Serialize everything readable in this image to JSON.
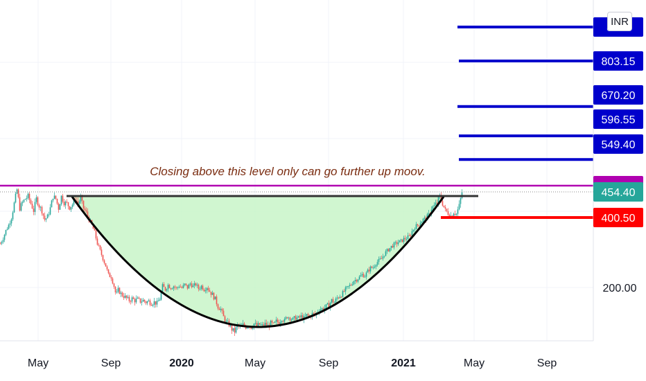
{
  "currency": "INR",
  "chart_data": {
    "type": "candlestick",
    "x_ticks": [
      "May",
      "Sep",
      "2020",
      "May",
      "Sep",
      "2021",
      "May",
      "Sep"
    ],
    "x_ticks_bold": [
      false,
      false,
      true,
      false,
      false,
      true,
      false,
      false
    ],
    "y_ticks": [
      {
        "value": 200,
        "label": "200.00"
      }
    ],
    "ylim": [
      100,
      900
    ],
    "grid": true,
    "price_series": [
      [
        0,
        330
      ],
      [
        4,
        345
      ],
      [
        8,
        365
      ],
      [
        12,
        380
      ],
      [
        16,
        400
      ],
      [
        20,
        430
      ],
      [
        24,
        460
      ],
      [
        28,
        420
      ],
      [
        32,
        432
      ],
      [
        36,
        440
      ],
      [
        40,
        445
      ],
      [
        44,
        430
      ],
      [
        48,
        415
      ],
      [
        52,
        440
      ],
      [
        56,
        425
      ],
      [
        60,
        415
      ],
      [
        64,
        395
      ],
      [
        68,
        402
      ],
      [
        72,
        420
      ],
      [
        76,
        445
      ],
      [
        80,
        440
      ],
      [
        84,
        420
      ],
      [
        88,
        445
      ],
      [
        92,
        432
      ],
      [
        96,
        430
      ],
      [
        100,
        422
      ],
      [
        104,
        428
      ],
      [
        108,
        440
      ],
      [
        112,
        430
      ],
      [
        116,
        440
      ],
      [
        120,
        420
      ],
      [
        124,
        410
      ],
      [
        128,
        395
      ],
      [
        132,
        380
      ],
      [
        136,
        360
      ],
      [
        140,
        330
      ],
      [
        144,
        310
      ],
      [
        148,
        290
      ],
      [
        152,
        270
      ],
      [
        156,
        245
      ],
      [
        160,
        240
      ],
      [
        164,
        215
      ],
      [
        167,
        190
      ],
      [
        170,
        205
      ],
      [
        174,
        195
      ],
      [
        178,
        190
      ],
      [
        182,
        185
      ],
      [
        186,
        180
      ],
      [
        190,
        184
      ],
      [
        194,
        180
      ],
      [
        198,
        182
      ],
      [
        202,
        178
      ],
      [
        206,
        180
      ],
      [
        210,
        176
      ],
      [
        214,
        178
      ],
      [
        218,
        174
      ],
      [
        222,
        176
      ],
      [
        226,
        173
      ],
      [
        230,
        184
      ],
      [
        234,
        215
      ],
      [
        238,
        206
      ],
      [
        242,
        218
      ],
      [
        246,
        211
      ],
      [
        250,
        215
      ],
      [
        254,
        209
      ],
      [
        258,
        216
      ],
      [
        262,
        210
      ],
      [
        266,
        219
      ],
      [
        270,
        211
      ],
      [
        274,
        222
      ],
      [
        278,
        214
      ],
      [
        282,
        220
      ],
      [
        286,
        208
      ],
      [
        290,
        215
      ],
      [
        294,
        206
      ],
      [
        298,
        213
      ],
      [
        302,
        201
      ],
      [
        306,
        193
      ],
      [
        310,
        183
      ],
      [
        314,
        166
      ],
      [
        318,
        160
      ],
      [
        322,
        142
      ],
      [
        326,
        130
      ],
      [
        330,
        125
      ],
      [
        334,
        114
      ],
      [
        338,
        109
      ],
      [
        342,
        123
      ],
      [
        346,
        119
      ],
      [
        350,
        124
      ],
      [
        354,
        120
      ],
      [
        358,
        124
      ],
      [
        362,
        119
      ],
      [
        366,
        127
      ],
      [
        370,
        122
      ],
      [
        374,
        125
      ],
      [
        378,
        122
      ],
      [
        382,
        126
      ],
      [
        386,
        122
      ],
      [
        390,
        128
      ],
      [
        394,
        124
      ],
      [
        398,
        132
      ],
      [
        402,
        130
      ],
      [
        406,
        139
      ],
      [
        410,
        133
      ],
      [
        414,
        144
      ],
      [
        418,
        140
      ],
      [
        422,
        136
      ],
      [
        426,
        141
      ],
      [
        430,
        139
      ],
      [
        434,
        143
      ],
      [
        438,
        139
      ],
      [
        442,
        146
      ],
      [
        446,
        143
      ],
      [
        450,
        149
      ],
      [
        454,
        146
      ],
      [
        458,
        156
      ],
      [
        462,
        161
      ],
      [
        466,
        160
      ],
      [
        470,
        166
      ],
      [
        474,
        170
      ],
      [
        478,
        180
      ],
      [
        482,
        176
      ],
      [
        486,
        186
      ],
      [
        490,
        191
      ],
      [
        494,
        196
      ],
      [
        498,
        206
      ],
      [
        502,
        213
      ],
      [
        506,
        219
      ],
      [
        510,
        230
      ],
      [
        514,
        233
      ],
      [
        518,
        239
      ],
      [
        522,
        246
      ],
      [
        526,
        243
      ],
      [
        530,
        255
      ],
      [
        534,
        264
      ],
      [
        538,
        266
      ],
      [
        542,
        278
      ],
      [
        546,
        283
      ],
      [
        550,
        289
      ],
      [
        554,
        302
      ],
      [
        558,
        310
      ],
      [
        562,
        318
      ],
      [
        566,
        325
      ],
      [
        570,
        329
      ],
      [
        574,
        334
      ],
      [
        578,
        336
      ],
      [
        582,
        342
      ],
      [
        586,
        345
      ],
      [
        590,
        349
      ],
      [
        594,
        363
      ],
      [
        598,
        375
      ],
      [
        602,
        380
      ],
      [
        606,
        388
      ],
      [
        610,
        395
      ],
      [
        614,
        398
      ],
      [
        618,
        405
      ],
      [
        622,
        420
      ],
      [
        626,
        425
      ],
      [
        630,
        432
      ],
      [
        634,
        445
      ],
      [
        638,
        430
      ],
      [
        642,
        415
      ],
      [
        646,
        410
      ],
      [
        650,
        404
      ],
      [
        654,
        412
      ],
      [
        658,
        408
      ],
      [
        662,
        425
      ],
      [
        666,
        454
      ]
    ],
    "price_labels": [
      {
        "value": 860,
        "label": "8…0",
        "color": "#0000cc"
      },
      {
        "value": 803.15,
        "label": "803.15",
        "color": "#0000cc"
      },
      {
        "value": 670.2,
        "label": "670.20",
        "color": "#0000cc"
      },
      {
        "value": 596.55,
        "label": "596.55",
        "color": "#0000cc"
      },
      {
        "value": 549.4,
        "label": "549.40",
        "color": "#0000cc"
      },
      {
        "value": 470.0,
        "label": "470.00",
        "color": "#b000b0"
      },
      {
        "value": 454.4,
        "label": "454.40",
        "color": "#26a69a"
      },
      {
        "value": 400.5,
        "label": "400.50",
        "color": "#ff0000"
      }
    ],
    "horizontal_levels": [
      {
        "value": 860,
        "color": "#0000cc"
      },
      {
        "value": 803.15,
        "color": "#0000cc"
      },
      {
        "value": 635,
        "color": "#0000cc"
      },
      {
        "value": 565,
        "color": "#0000cc"
      },
      {
        "value": 520,
        "color": "#0000cc"
      },
      {
        "value": 400.5,
        "color": "#ff0000"
      },
      {
        "value": 470,
        "color": "#b000b0"
      }
    ],
    "annotation": "Closing above this level only can go further up moov.",
    "colors": {
      "up": "#26a69a",
      "down": "#ef5350",
      "fill": "#c8f5c8",
      "arc": "#000000"
    }
  }
}
